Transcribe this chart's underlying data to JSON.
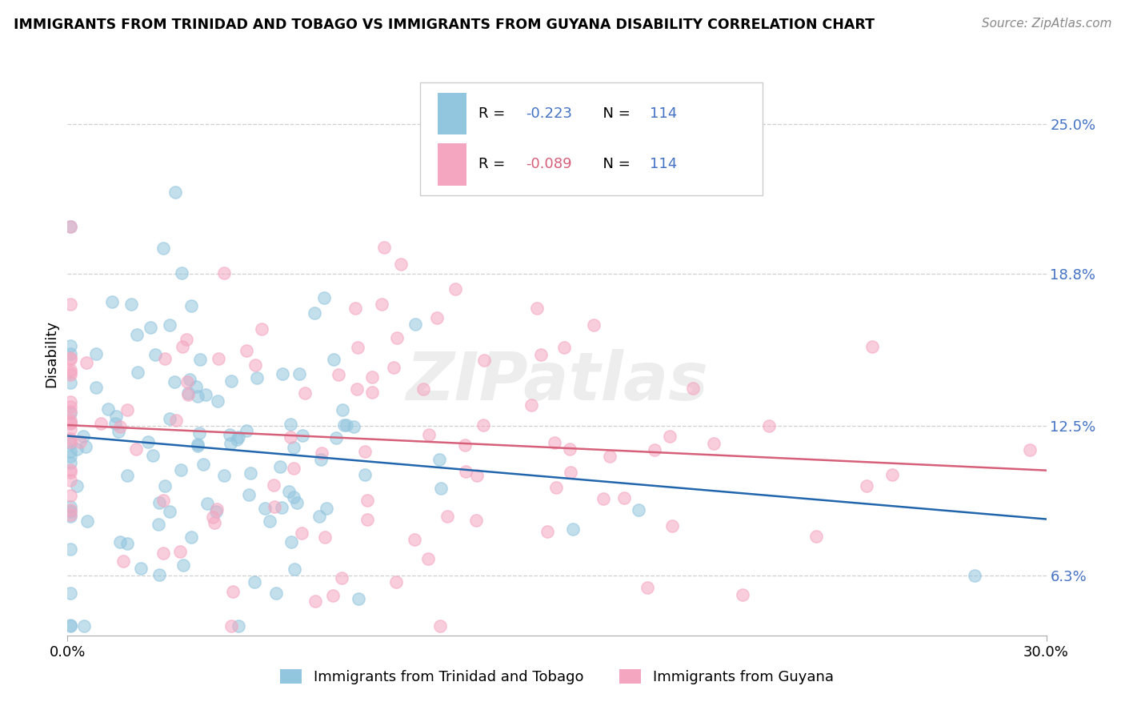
{
  "title": "IMMIGRANTS FROM TRINIDAD AND TOBAGO VS IMMIGRANTS FROM GUYANA DISABILITY CORRELATION CHART",
  "source": "Source: ZipAtlas.com",
  "ylabel": "Disability",
  "legend_label_blue": "Immigrants from Trinidad and Tobago",
  "legend_label_pink": "Immigrants from Guyana",
  "R_blue": -0.223,
  "N_blue": 114,
  "R_pink": -0.089,
  "N_pink": 114,
  "color_blue": "#92c5de",
  "color_pink": "#f4a6c0",
  "line_color_blue": "#2166ac",
  "line_color_pink": "#d6607a",
  "xmin": 0.0,
  "xmax": 0.3,
  "ymin": 0.038,
  "ymax": 0.272,
  "yticks": [
    0.063,
    0.125,
    0.188,
    0.25
  ],
  "ytick_labels": [
    "6.3%",
    "12.5%",
    "18.8%",
    "25.0%"
  ],
  "watermark": "ZIPatlas",
  "background_color": "#ffffff",
  "grid_color": "#d0d0d0"
}
